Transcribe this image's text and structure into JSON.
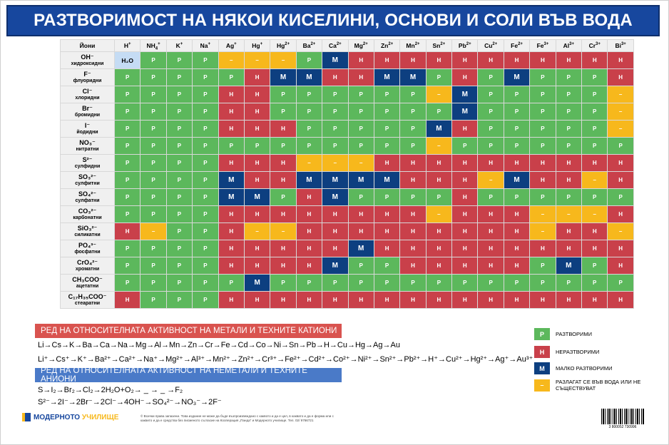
{
  "title": "РАЗТВОРИМОСТ НА НЯКОИ КИСЕЛИНИ, ОСНОВИ И СОЛИ ВЪВ ВОДА",
  "table": {
    "corner_label": "Йони",
    "cations": [
      {
        "sym": "H",
        "sup": "+"
      },
      {
        "sym": "NH",
        "sub": "4",
        "sup": "+"
      },
      {
        "sym": "K",
        "sup": "+"
      },
      {
        "sym": "Na",
        "sup": "+"
      },
      {
        "sym": "Ag",
        "sup": "+"
      },
      {
        "sym": "Hg",
        "sup": "+"
      },
      {
        "sym": "Hg",
        "sup": "2+"
      },
      {
        "sym": "Ba",
        "sup": "2+"
      },
      {
        "sym": "Ca",
        "sup": "2+"
      },
      {
        "sym": "Mg",
        "sup": "2+"
      },
      {
        "sym": "Zn",
        "sup": "2+"
      },
      {
        "sym": "Mn",
        "sup": "2+"
      },
      {
        "sym": "Sn",
        "sup": "2+"
      },
      {
        "sym": "Pb",
        "sup": "2+"
      },
      {
        "sym": "Cu",
        "sup": "2+"
      },
      {
        "sym": "Fe",
        "sup": "2+"
      },
      {
        "sym": "Fe",
        "sup": "3+"
      },
      {
        "sym": "Al",
        "sup": "3+"
      },
      {
        "sym": "Cr",
        "sup": "3+"
      },
      {
        "sym": "Bi",
        "sup": "3+"
      }
    ],
    "water_label": "H₂O",
    "rows": [
      {
        "formula": "OH⁻",
        "name": "хидроксидни",
        "cells": [
          "w",
          "Р",
          "Р",
          "Р",
          "x",
          "x",
          "x",
          "Р",
          "М",
          "Н",
          "Н",
          "Н",
          "Н",
          "Н",
          "Н",
          "Н",
          "Н",
          "Н",
          "Н",
          "Н"
        ]
      },
      {
        "formula": "F⁻",
        "name": "флуоридни",
        "cells": [
          "Р",
          "Р",
          "Р",
          "Р",
          "Р",
          "Н",
          "М",
          "М",
          "Н",
          "Н",
          "М",
          "М",
          "Р",
          "Н",
          "Р",
          "М",
          "Р",
          "Р",
          "Р",
          "Н"
        ]
      },
      {
        "formula": "Cl⁻",
        "name": "хлоридни",
        "cells": [
          "Р",
          "Р",
          "Р",
          "Р",
          "Н",
          "Н",
          "Р",
          "Р",
          "Р",
          "Р",
          "Р",
          "Р",
          "x",
          "М",
          "Р",
          "Р",
          "Р",
          "Р",
          "Р",
          "x"
        ]
      },
      {
        "formula": "Br⁻",
        "name": "бромидни",
        "cells": [
          "Р",
          "Р",
          "Р",
          "Р",
          "Н",
          "Н",
          "Р",
          "Р",
          "Р",
          "Р",
          "Р",
          "Р",
          "Р",
          "М",
          "Р",
          "Р",
          "Р",
          "Р",
          "Р",
          "x"
        ]
      },
      {
        "formula": "I⁻",
        "name": "йодидни",
        "cells": [
          "Р",
          "Р",
          "Р",
          "Р",
          "Н",
          "Н",
          "Н",
          "Р",
          "Р",
          "Р",
          "Р",
          "Р",
          "М",
          "Н",
          "Р",
          "Р",
          "Р",
          "Р",
          "Р",
          "x"
        ]
      },
      {
        "formula": "NO₃⁻",
        "name": "нитратни",
        "cells": [
          "Р",
          "Р",
          "Р",
          "Р",
          "Р",
          "Р",
          "Р",
          "Р",
          "Р",
          "Р",
          "Р",
          "Р",
          "x",
          "Р",
          "Р",
          "Р",
          "Р",
          "Р",
          "Р",
          "Р"
        ]
      },
      {
        "formula": "S²⁻",
        "name": "сулфидни",
        "cells": [
          "Р",
          "Р",
          "Р",
          "Р",
          "Н",
          "Н",
          "Н",
          "x",
          "x",
          "x",
          "Н",
          "Н",
          "Н",
          "Н",
          "Н",
          "Н",
          "Н",
          "Н",
          "Н",
          "Н"
        ]
      },
      {
        "formula": "SO₃²⁻",
        "name": "сулфитни",
        "cells": [
          "Р",
          "Р",
          "Р",
          "Р",
          "М",
          "Н",
          "Н",
          "М",
          "М",
          "М",
          "М",
          "Н",
          "Н",
          "Н",
          "x",
          "М",
          "Н",
          "Н",
          "x",
          "Н"
        ]
      },
      {
        "formula": "SO₄²⁻",
        "name": "сулфатни",
        "cells": [
          "Р",
          "Р",
          "Р",
          "Р",
          "М",
          "М",
          "Р",
          "Н",
          "М",
          "Р",
          "Р",
          "Р",
          "Р",
          "Н",
          "Р",
          "Р",
          "Р",
          "Р",
          "Р",
          "Р"
        ]
      },
      {
        "formula": "CO₃²⁻",
        "name": "карбонатни",
        "cells": [
          "Р",
          "Р",
          "Р",
          "Р",
          "Н",
          "Н",
          "Н",
          "Н",
          "Н",
          "Н",
          "Н",
          "Н",
          "x",
          "Н",
          "Н",
          "Н",
          "x",
          "x",
          "x",
          "Н"
        ]
      },
      {
        "formula": "SiO₃²⁻",
        "name": "силикатни",
        "cells": [
          "Н",
          "x",
          "Р",
          "Р",
          "Н",
          "x",
          "x",
          "Н",
          "Н",
          "Н",
          "Н",
          "Н",
          "Н",
          "Н",
          "Н",
          "Н",
          "x",
          "Н",
          "Н",
          "x"
        ]
      },
      {
        "formula": "PO₄³⁻",
        "name": "фосфатни",
        "cells": [
          "Р",
          "Р",
          "Р",
          "Р",
          "Н",
          "Н",
          "Н",
          "Н",
          "Н",
          "М",
          "Н",
          "Н",
          "Н",
          "Н",
          "Н",
          "Н",
          "Н",
          "Н",
          "Н",
          "Н"
        ]
      },
      {
        "formula": "CrO₄²⁻",
        "name": "хроматни",
        "cells": [
          "Р",
          "Р",
          "Р",
          "Р",
          "Н",
          "Н",
          "Н",
          "Н",
          "М",
          "Р",
          "Р",
          "Н",
          "Н",
          "Н",
          "Н",
          "Н",
          "Р",
          "М",
          "Р",
          "Н"
        ]
      },
      {
        "formula": "CH₃COO⁻",
        "name": "ацетатни",
        "cells": [
          "Р",
          "Р",
          "Р",
          "Р",
          "Р",
          "М",
          "Р",
          "Р",
          "Р",
          "Р",
          "Р",
          "Р",
          "Р",
          "Р",
          "Р",
          "Р",
          "Р",
          "Р",
          "Р",
          "Р"
        ]
      },
      {
        "formula": "C₁₇H₃₅COO⁻",
        "name": "стеаратни",
        "cells": [
          "Н",
          "Р",
          "Р",
          "Р",
          "Н",
          "Н",
          "Н",
          "Н",
          "Н",
          "Н",
          "Н",
          "Н",
          "Н",
          "Н",
          "Н",
          "Н",
          "Н",
          "Н",
          "Н",
          "Н"
        ]
      }
    ]
  },
  "metals_section": {
    "title": "РЕД НА ОТНОСИТЕЛНАТА АКТИВНОСТ НА МЕТАЛИ И ТЕХНИТЕ КАТИОНИ",
    "series_1": "Li→Cs→K→Ba→Ca→Na→Mg→Al→Mn→Zn→Cr→Fe→Cd→Co→Ni→Sn→Pb→H→Cu→Hg→Ag→Au",
    "series_2": "Li⁺→Cs⁺→K⁺→Ba²⁺→Ca²⁺→Na⁺→Mg²⁺→Al³⁺→Mn²⁺→Zn²⁺→Cr³⁺→Fe²⁺→Cd²⁺→Co²⁺→Ni²⁺→Sn²⁺→Pb²⁺→H⁺→Cu²⁺→Hg²⁺→Ag⁺→Au³⁺"
  },
  "nonmetals_section": {
    "title": "РЕД НА ОТНОСИТЕЛНАТА АКТИВНОСТ НА НЕМЕТАЛИ И ТЕХНИТЕ АНИОНИ",
    "series_1": "S→I₂→Br₂→Cl₂→2H₂O+O₂→ _ → _ →F₂",
    "series_2": "S²⁻→2I⁻→2Br⁻→2Cl⁻→4OH⁻→SO₄²⁻→NO₃⁻→2F⁻"
  },
  "legend": [
    {
      "symbol": "Р",
      "key": "Р",
      "label": "РАЗТВОРИМИ"
    },
    {
      "symbol": "Н",
      "key": "Н",
      "label": "НЕРАЗТВОРИМИ"
    },
    {
      "symbol": "М",
      "key": "М",
      "label": "МАЛКО РАЗТВОРИМИ"
    },
    {
      "symbol": "–",
      "key": "x",
      "label": "РАЗЛАГАТ СЕ ВЪВ ВОДА ИЛИ НЕ СЪЩЕСТВУВАТ"
    }
  ],
  "cell_glyphs": {
    "Р": "Р",
    "Н": "Н",
    "М": "М",
    "x": "–"
  },
  "colors": {
    "soluble": "#5cb85c",
    "insoluble": "#c9404a",
    "slightly_soluble": "#0d3f80",
    "decomposes": "#f7b81c",
    "title_bar": "#17479e",
    "water_cell": "#c5dcf4"
  },
  "footer": {
    "logo_part_1": "МОДЕРНОТО",
    "logo_part_2": "УЧИЛИЩЕ",
    "copyright": "© Всички права запазени. Това издание не може да бъде възпроизвеждано с каквото и да е цел, в каквато и да е форма или с каквито и да е средства без писменото съгласие на Кооперация „Панда“ и Модерното училище. Тел. 02/ 9766721",
    "barcode_digits": "3 800052 730996"
  }
}
